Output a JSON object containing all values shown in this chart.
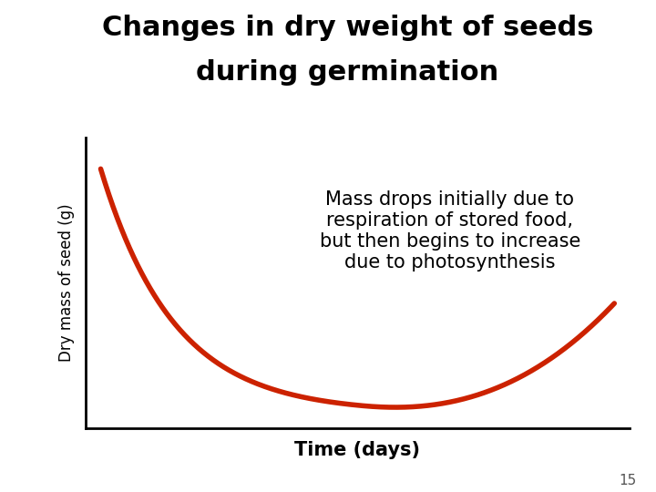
{
  "title_line1": "Changes in dry weight of seeds",
  "title_line2": "during germination",
  "xlabel": "Time (days)",
  "ylabel": "Dry mass of seed (g)",
  "annotation": "Mass drops initially due to\nrespiration of stored food,\nbut then begins to increase\ndue to photosynthesis",
  "curve_color": "#cc2200",
  "curve_linewidth": 4.0,
  "background_color": "#ffffff",
  "title_fontsize": 22,
  "xlabel_fontsize": 15,
  "xlabel_fontweight": "bold",
  "ylabel_fontsize": 12,
  "ylabel_fontweight": "normal",
  "annotation_fontsize": 15,
  "page_number": "15",
  "page_number_fontsize": 11
}
